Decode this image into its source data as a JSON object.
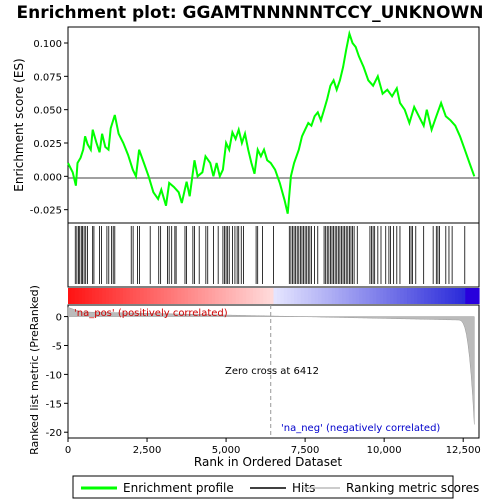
{
  "chart_data": {
    "type": "line",
    "title": "Enrichment plot: GGAMTNNNNNTCCY_UNKNOWN",
    "xlabel": "Rank in Ordered Dataset",
    "ylabel_top": "Enrichment score (ES)",
    "ylabel_bottom": "Ranked list metric (PreRanked)",
    "x_ticks": [
      0,
      2500,
      5000,
      7500,
      10000,
      12500
    ],
    "x_tick_labels": [
      "0",
      "2,500",
      "5,000",
      "7,500",
      "10,000",
      "12,500"
    ],
    "xlim": [
      0,
      13000
    ],
    "es_ylim": [
      -0.035,
      0.112
    ],
    "es_yticks": [
      -0.025,
      0.0,
      0.025,
      0.05,
      0.075,
      0.1
    ],
    "es_ytick_labels": [
      "-0.025",
      "0.000",
      "0.025",
      "0.050",
      "0.075",
      "0.100"
    ],
    "metric_ylim": [
      -21,
      2
    ],
    "metric_yticks": [
      0,
      -5,
      -10,
      -15,
      -20
    ],
    "metric_ytick_labels": [
      "0",
      "-5",
      "-10",
      "-15",
      "-20"
    ],
    "es_profile": [
      [
        0,
        0.01
      ],
      [
        150,
        0.003
      ],
      [
        250,
        -0.007
      ],
      [
        300,
        0.01
      ],
      [
        400,
        0.014
      ],
      [
        480,
        0.02
      ],
      [
        540,
        0.03
      ],
      [
        620,
        0.024
      ],
      [
        720,
        0.02
      ],
      [
        780,
        0.035
      ],
      [
        900,
        0.025
      ],
      [
        1000,
        0.018
      ],
      [
        1080,
        0.032
      ],
      [
        1180,
        0.022
      ],
      [
        1280,
        0.02
      ],
      [
        1350,
        0.036
      ],
      [
        1480,
        0.046
      ],
      [
        1600,
        0.032
      ],
      [
        1750,
        0.025
      ],
      [
        1900,
        0.016
      ],
      [
        2050,
        0.005
      ],
      [
        2150,
        0.0
      ],
      [
        2250,
        0.02
      ],
      [
        2400,
        0.01
      ],
      [
        2550,
        0.0
      ],
      [
        2700,
        -0.012
      ],
      [
        2850,
        -0.017
      ],
      [
        2950,
        -0.01
      ],
      [
        3100,
        -0.022
      ],
      [
        3200,
        -0.005
      ],
      [
        3350,
        -0.008
      ],
      [
        3500,
        -0.012
      ],
      [
        3600,
        -0.02
      ],
      [
        3750,
        -0.004
      ],
      [
        3850,
        -0.015
      ],
      [
        4000,
        0.012
      ],
      [
        4100,
        0.0
      ],
      [
        4250,
        0.003
      ],
      [
        4350,
        0.015
      ],
      [
        4500,
        0.01
      ],
      [
        4600,
        0.0
      ],
      [
        4700,
        0.01
      ],
      [
        4800,
        0.0
      ],
      [
        4900,
        0.005
      ],
      [
        5000,
        0.025
      ],
      [
        5100,
        0.02
      ],
      [
        5200,
        0.033
      ],
      [
        5300,
        0.028
      ],
      [
        5400,
        0.035
      ],
      [
        5500,
        0.025
      ],
      [
        5600,
        0.032
      ],
      [
        5700,
        0.02
      ],
      [
        5800,
        0.01
      ],
      [
        5900,
        0.002
      ],
      [
        6000,
        0.02
      ],
      [
        6100,
        0.015
      ],
      [
        6200,
        0.02
      ],
      [
        6300,
        0.012
      ],
      [
        6412,
        0.01
      ],
      [
        6550,
        0.005
      ],
      [
        6700,
        -0.005
      ],
      [
        6850,
        -0.018
      ],
      [
        6950,
        -0.028
      ],
      [
        7050,
        0.0
      ],
      [
        7150,
        0.01
      ],
      [
        7300,
        0.02
      ],
      [
        7400,
        0.03
      ],
      [
        7500,
        0.035
      ],
      [
        7600,
        0.04
      ],
      [
        7700,
        0.038
      ],
      [
        7800,
        0.045
      ],
      [
        7900,
        0.048
      ],
      [
        8000,
        0.042
      ],
      [
        8100,
        0.05
      ],
      [
        8200,
        0.058
      ],
      [
        8300,
        0.068
      ],
      [
        8400,
        0.072
      ],
      [
        8500,
        0.065
      ],
      [
        8600,
        0.072
      ],
      [
        8700,
        0.082
      ],
      [
        8800,
        0.095
      ],
      [
        8900,
        0.107
      ],
      [
        9000,
        0.1
      ],
      [
        9100,
        0.097
      ],
      [
        9200,
        0.09
      ],
      [
        9350,
        0.082
      ],
      [
        9500,
        0.072
      ],
      [
        9650,
        0.068
      ],
      [
        9800,
        0.075
      ],
      [
        9950,
        0.062
      ],
      [
        10100,
        0.065
      ],
      [
        10250,
        0.06
      ],
      [
        10400,
        0.066
      ],
      [
        10500,
        0.055
      ],
      [
        10650,
        0.05
      ],
      [
        10800,
        0.04
      ],
      [
        10950,
        0.052
      ],
      [
        11100,
        0.045
      ],
      [
        11250,
        0.038
      ],
      [
        11350,
        0.05
      ],
      [
        11500,
        0.035
      ],
      [
        11650,
        0.045
      ],
      [
        11800,
        0.055
      ],
      [
        11950,
        0.045
      ],
      [
        12100,
        0.042
      ],
      [
        12250,
        0.038
      ],
      [
        12400,
        0.03
      ],
      [
        12550,
        0.02
      ],
      [
        12700,
        0.01
      ],
      [
        12850,
        0.0
      ]
    ],
    "hits": [
      230,
      280,
      330,
      370,
      420,
      460,
      510,
      560,
      620,
      780,
      820,
      1000,
      1060,
      1230,
      1290,
      1380,
      1430,
      1480,
      2000,
      2060,
      2200,
      2260,
      2600,
      2870,
      2930,
      3150,
      3200,
      3280,
      3380,
      3420,
      3700,
      3750,
      3950,
      4000,
      4150,
      4360,
      4420,
      4600,
      4750,
      4900,
      4950,
      5000,
      5050,
      5100,
      5200,
      5280,
      5350,
      5400,
      5480,
      5550,
      5950,
      6000,
      6150,
      6500,
      7000,
      7050,
      7100,
      7150,
      7200,
      7250,
      7300,
      7350,
      7400,
      7450,
      7500,
      7550,
      7600,
      7650,
      7700,
      7800,
      7900,
      8100,
      8150,
      8200,
      8250,
      8300,
      8350,
      8400,
      8450,
      8500,
      8550,
      8600,
      8650,
      8700,
      8750,
      8800,
      8850,
      8900,
      8950,
      9000,
      9050,
      9150,
      9550,
      9600,
      9650,
      9700,
      9800,
      9900,
      10050,
      10150,
      10200,
      10300,
      10400,
      10500,
      10800,
      10850,
      10900,
      11000,
      11250,
      11550,
      11650,
      11700,
      11750,
      11950,
      12050,
      12150,
      12550
    ],
    "zero_cross_label": "Zero cross at 6412",
    "zero_cross_x": 6412,
    "pos_label": "'na_pos' (positively correlated)",
    "neg_label": "'na_neg' (negatively correlated)",
    "legend": [
      {
        "name": "Enrichment profile",
        "color": "#00ff00"
      },
      {
        "name": "Hits",
        "color": "#000000"
      },
      {
        "name": "Ranking metric scores",
        "color": "#bbbbbb"
      }
    ]
  }
}
